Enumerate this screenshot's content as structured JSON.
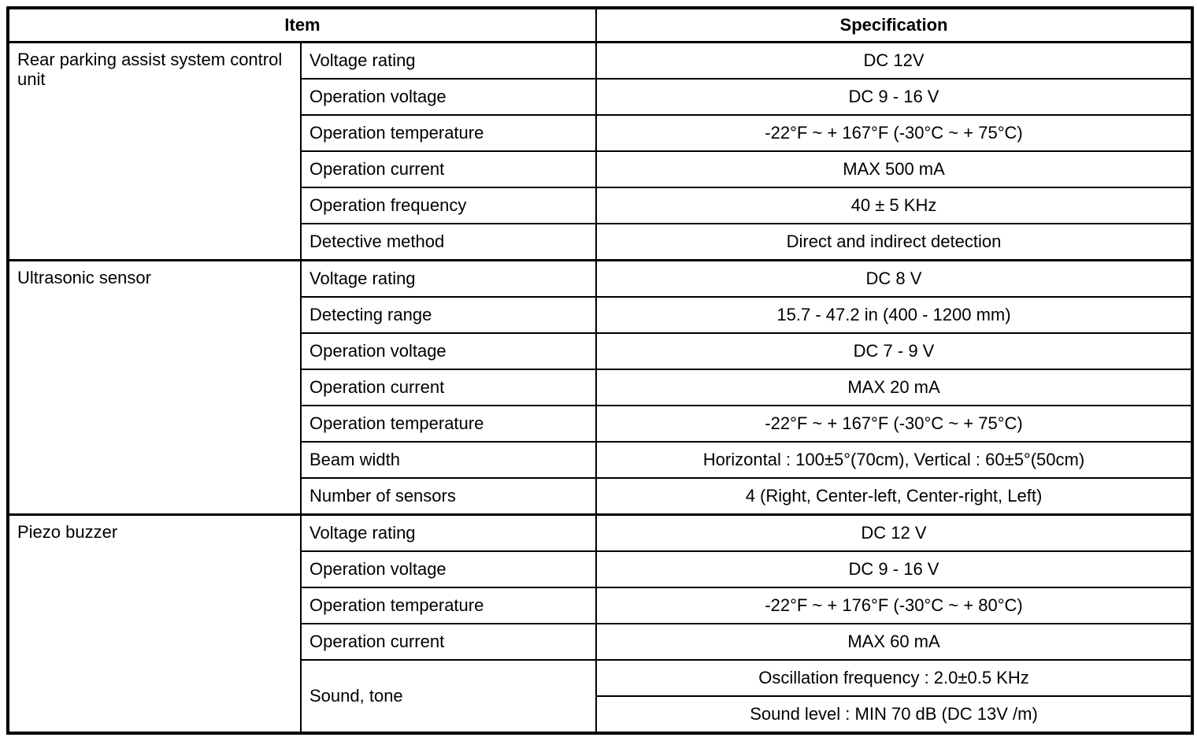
{
  "table": {
    "headers": {
      "item": "Item",
      "specification": "Specification"
    },
    "groups": [
      {
        "name": "Rear parking assist system control unit",
        "rows": [
          {
            "item": "Voltage rating",
            "spec": "DC 12V"
          },
          {
            "item": "Operation voltage",
            "spec": "DC 9 - 16 V"
          },
          {
            "item": "Operation temperature",
            "spec": "-22°F ~ + 167°F (-30°C ~ + 75°C)"
          },
          {
            "item": "Operation current",
            "spec": "MAX 500 mA"
          },
          {
            "item": "Operation frequency",
            "spec": "40 ± 5 KHz"
          },
          {
            "item": "Detective method",
            "spec": "Direct and indirect detection"
          }
        ]
      },
      {
        "name": "Ultrasonic sensor",
        "rows": [
          {
            "item": "Voltage rating",
            "spec": "DC 8 V"
          },
          {
            "item": "Detecting range",
            "spec": "15.7 - 47.2 in (400 - 1200 mm)"
          },
          {
            "item": "Operation voltage",
            "spec": "DC 7 - 9 V"
          },
          {
            "item": "Operation current",
            "spec": "MAX 20 mA"
          },
          {
            "item": "Operation temperature",
            "spec": "-22°F ~ + 167°F (-30°C ~ + 75°C)"
          },
          {
            "item": "Beam width",
            "spec": "Horizontal : 100±5°(70cm), Vertical : 60±5°(50cm)"
          },
          {
            "item": "Number of sensors",
            "spec": "4 (Right, Center-left, Center-right, Left)"
          }
        ]
      },
      {
        "name": "Piezo buzzer",
        "rows": [
          {
            "item": "Voltage rating",
            "spec": "DC 12 V"
          },
          {
            "item": "Operation voltage",
            "spec": "DC 9 - 16 V"
          },
          {
            "item": "Operation temperature",
            "spec": "-22°F ~ + 176°F (-30°C ~ + 80°C)"
          },
          {
            "item": "Operation current",
            "spec": "MAX 60 mA"
          },
          {
            "item": "Sound, tone",
            "specs": [
              "Oscillation frequency : 2.0±0.5 KHz",
              "Sound level : MIN 70 dB (DC 13V /m)"
            ]
          }
        ]
      }
    ]
  }
}
